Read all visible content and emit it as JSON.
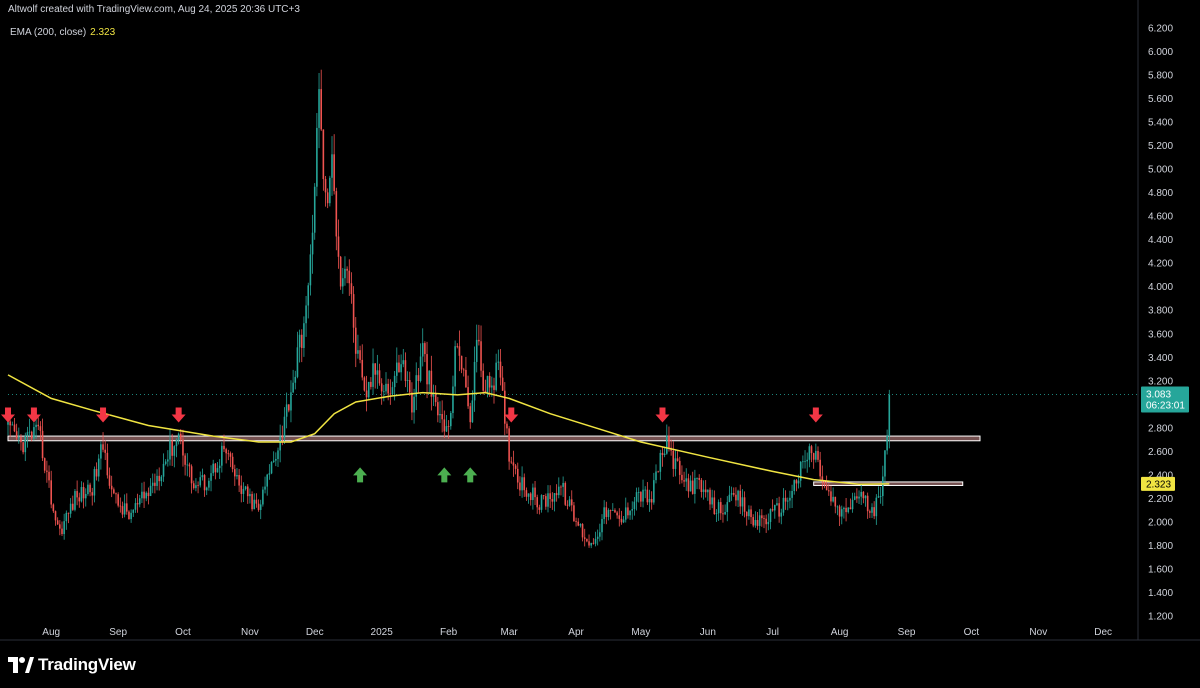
{
  "header": {
    "attribution": "Altwolf created with TradingView.com, Aug 24, 2025 20:36 UTC+3"
  },
  "indicator": {
    "label": "EMA (200, close)",
    "value": "2.323"
  },
  "logo": {
    "text": "TradingView"
  },
  "colors": {
    "background": "#000000",
    "up_candle": "#26a69a",
    "down_candle": "#ef5350",
    "ema_line": "#f0e442",
    "price_tag": "#26a69a",
    "ema_tag": "#f0e442",
    "arrow_down": "#f23645",
    "arrow_up": "#4caf50",
    "zone_outline": "#ffffff",
    "zone_fill": "#e8a0a0"
  },
  "chart_data": {
    "type": "candlestick",
    "title": "",
    "xlabel": "",
    "ylabel": "",
    "y_ticks": [
      "1.200",
      "1.400",
      "1.600",
      "1.800",
      "2.000",
      "2.200",
      "2.400",
      "2.600",
      "2.800",
      "3.000",
      "3.200",
      "3.400",
      "3.600",
      "3.800",
      "4.000",
      "4.200",
      "4.400",
      "4.600",
      "4.800",
      "5.000",
      "5.200",
      "5.400",
      "5.600",
      "5.800",
      "6.000",
      "6.200"
    ],
    "ylim": [
      1.2,
      6.2
    ],
    "x_ticks": [
      "Aug",
      "Sep",
      "Oct",
      "Nov",
      "Dec",
      "2025",
      "Feb",
      "Mar",
      "Apr",
      "May",
      "Jun",
      "Jul",
      "Aug",
      "Sep",
      "Oct",
      "Nov",
      "Dec"
    ],
    "x_range": [
      "2024-07-12",
      "2025-12-31"
    ],
    "last_price": "3.083",
    "countdown": "06:23:01",
    "ema_value_tag": "2.323",
    "price_anchors": [
      [
        "2024-07-12",
        2.78
      ],
      [
        "2024-07-18",
        2.66
      ],
      [
        "2024-07-24",
        2.76
      ],
      [
        "2024-07-27",
        2.7
      ],
      [
        "2024-08-02",
        2.1
      ],
      [
        "2024-08-05",
        1.92
      ],
      [
        "2024-08-12",
        2.2
      ],
      [
        "2024-08-20",
        2.3
      ],
      [
        "2024-08-25",
        2.65
      ],
      [
        "2024-08-30",
        2.2
      ],
      [
        "2024-09-06",
        2.05
      ],
      [
        "2024-09-15",
        2.25
      ],
      [
        "2024-09-22",
        2.5
      ],
      [
        "2024-09-29",
        2.75
      ],
      [
        "2024-10-06",
        2.3
      ],
      [
        "2024-10-12",
        2.35
      ],
      [
        "2024-10-20",
        2.62
      ],
      [
        "2024-10-27",
        2.3
      ],
      [
        "2024-11-05",
        2.1
      ],
      [
        "2024-11-12",
        2.55
      ],
      [
        "2024-11-16",
        2.78
      ],
      [
        "2024-11-22",
        3.3
      ],
      [
        "2024-11-28",
        3.9
      ],
      [
        "2024-12-03",
        5.6
      ],
      [
        "2024-12-06",
        4.7
      ],
      [
        "2024-12-09",
        5.0
      ],
      [
        "2024-12-13",
        4.1
      ],
      [
        "2024-12-16",
        4.2
      ],
      [
        "2024-12-20",
        3.5
      ],
      [
        "2024-12-24",
        3.05
      ],
      [
        "2024-12-29",
        3.3
      ],
      [
        "2025-01-05",
        3.1
      ],
      [
        "2025-01-10",
        3.4
      ],
      [
        "2025-01-15",
        3.0
      ],
      [
        "2025-01-20",
        3.45
      ],
      [
        "2025-01-25",
        3.0
      ],
      [
        "2025-02-01",
        2.75
      ],
      [
        "2025-02-05",
        3.6
      ],
      [
        "2025-02-08",
        3.2
      ],
      [
        "2025-02-11",
        2.9
      ],
      [
        "2025-02-14",
        3.55
      ],
      [
        "2025-02-18",
        3.1
      ],
      [
        "2025-02-24",
        3.3
      ],
      [
        "2025-03-01",
        2.6
      ],
      [
        "2025-03-06",
        2.35
      ],
      [
        "2025-03-15",
        2.15
      ],
      [
        "2025-03-25",
        2.3
      ],
      [
        "2025-04-01",
        2.0
      ],
      [
        "2025-04-08",
        1.8
      ],
      [
        "2025-04-15",
        2.1
      ],
      [
        "2025-04-22",
        2.0
      ],
      [
        "2025-04-29",
        2.25
      ],
      [
        "2025-05-06",
        2.2
      ],
      [
        "2025-05-10",
        2.55
      ],
      [
        "2025-05-13",
        2.65
      ],
      [
        "2025-05-20",
        2.35
      ],
      [
        "2025-05-28",
        2.3
      ],
      [
        "2025-06-05",
        2.1
      ],
      [
        "2025-06-15",
        2.2
      ],
      [
        "2025-06-22",
        2.0
      ],
      [
        "2025-06-30",
        2.05
      ],
      [
        "2025-07-06",
        2.15
      ],
      [
        "2025-07-12",
        2.35
      ],
      [
        "2025-07-18",
        2.6
      ],
      [
        "2025-07-21",
        2.55
      ],
      [
        "2025-07-26",
        2.25
      ],
      [
        "2025-08-02",
        2.05
      ],
      [
        "2025-08-10",
        2.25
      ],
      [
        "2025-08-17",
        2.05
      ],
      [
        "2025-08-20",
        2.3
      ],
      [
        "2025-08-23",
        2.8
      ],
      [
        "2025-08-24",
        3.08
      ]
    ],
    "ema_anchors": [
      [
        "2024-07-12",
        3.25
      ],
      [
        "2024-08-01",
        3.05
      ],
      [
        "2024-08-20",
        2.95
      ],
      [
        "2024-09-15",
        2.82
      ],
      [
        "2024-10-15",
        2.73
      ],
      [
        "2024-11-05",
        2.68
      ],
      [
        "2024-11-20",
        2.68
      ],
      [
        "2024-12-01",
        2.75
      ],
      [
        "2024-12-10",
        2.92
      ],
      [
        "2024-12-20",
        3.02
      ],
      [
        "2025-01-05",
        3.07
      ],
      [
        "2025-01-20",
        3.1
      ],
      [
        "2025-02-05",
        3.08
      ],
      [
        "2025-02-18",
        3.1
      ],
      [
        "2025-03-01",
        3.05
      ],
      [
        "2025-03-20",
        2.92
      ],
      [
        "2025-04-10",
        2.8
      ],
      [
        "2025-05-01",
        2.68
      ],
      [
        "2025-06-01",
        2.55
      ],
      [
        "2025-07-01",
        2.43
      ],
      [
        "2025-07-20",
        2.36
      ],
      [
        "2025-08-10",
        2.32
      ],
      [
        "2025-08-24",
        2.323
      ]
    ],
    "zones": [
      {
        "from": "2024-07-12",
        "to": "2025-10-05",
        "low": 2.69,
        "high": 2.73
      },
      {
        "from": "2025-07-20",
        "to": "2025-09-27",
        "low": 2.31,
        "high": 2.34
      }
    ],
    "arrows": [
      {
        "dir": "down",
        "date": "2024-07-12",
        "price": 2.82
      },
      {
        "dir": "down",
        "date": "2024-07-24",
        "price": 2.82
      },
      {
        "dir": "down",
        "date": "2024-08-25",
        "price": 2.82
      },
      {
        "dir": "down",
        "date": "2024-09-29",
        "price": 2.82
      },
      {
        "dir": "up",
        "date": "2024-12-22",
        "price": 2.6
      },
      {
        "dir": "up",
        "date": "2025-01-30",
        "price": 2.6
      },
      {
        "dir": "up",
        "date": "2025-02-11",
        "price": 2.6
      },
      {
        "dir": "down",
        "date": "2025-03-02",
        "price": 2.82
      },
      {
        "dir": "down",
        "date": "2025-05-11",
        "price": 2.82
      },
      {
        "dir": "down",
        "date": "2025-07-21",
        "price": 2.82
      }
    ]
  }
}
